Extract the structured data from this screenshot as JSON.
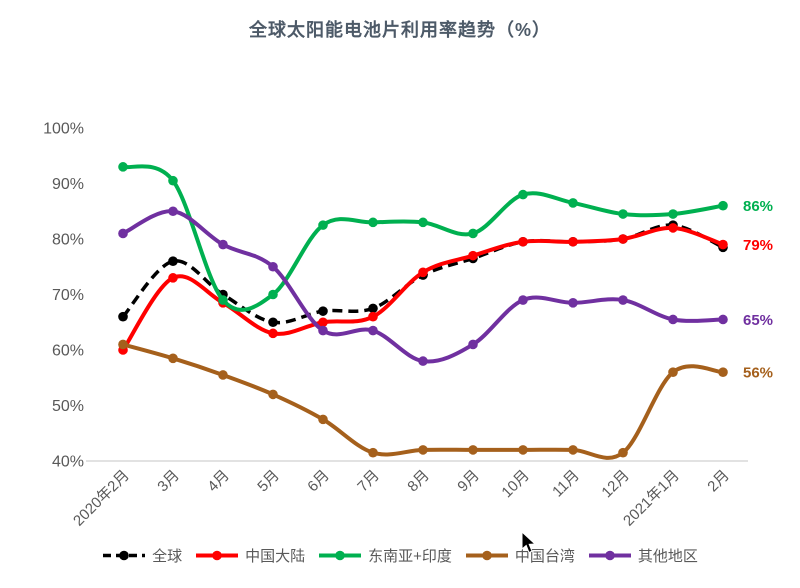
{
  "title": "全球太阳能电池片利用率趋势（%）",
  "chart_data": {
    "type": "line",
    "smooth": true,
    "grid": false,
    "legend_position": "bottom",
    "categories": [
      "2020年2月",
      "3月",
      "4月",
      "5月",
      "6月",
      "7月",
      "8月",
      "9月",
      "10月",
      "11月",
      "12月",
      "2021年1月",
      "2月"
    ],
    "ylim": [
      40,
      100
    ],
    "yticks": [
      "100%",
      "90%",
      "80%",
      "70%",
      "60%",
      "50%",
      "40%"
    ],
    "ytick_values": [
      100,
      90,
      80,
      70,
      60,
      50,
      40
    ],
    "series": [
      {
        "name": "全球",
        "color": "#000000",
        "style": "dashed",
        "values": [
          66,
          76,
          70,
          65,
          67,
          67.5,
          73.5,
          76.5,
          79.5,
          79.5,
          80,
          82.5,
          78.5
        ],
        "end_label": ""
      },
      {
        "name": "中国大陆",
        "color": "#FF0000",
        "style": "solid",
        "values": [
          60,
          73,
          68.5,
          63,
          65,
          66,
          74,
          77,
          79.5,
          79.5,
          80,
          82,
          79
        ],
        "end_label": "79%"
      },
      {
        "name": "东南亚+印度",
        "color": "#00B050",
        "style": "solid",
        "values": [
          93,
          90.5,
          69,
          70,
          82.5,
          83,
          83,
          81,
          88,
          86.5,
          84.5,
          84.5,
          86
        ],
        "end_label": "86%"
      },
      {
        "name": "中国台湾",
        "color": "#A5601C",
        "style": "solid",
        "values": [
          61,
          58.5,
          55.5,
          52,
          47.5,
          41.5,
          42,
          42,
          42,
          42,
          41.5,
          56,
          56
        ],
        "end_label": "56%"
      },
      {
        "name": "其他地区",
        "color": "#7030A0",
        "style": "solid",
        "values": [
          81,
          85,
          79,
          75,
          63.5,
          63.5,
          58,
          61,
          69,
          68.5,
          69,
          65.5,
          65.5
        ],
        "end_label": "65%"
      }
    ]
  }
}
